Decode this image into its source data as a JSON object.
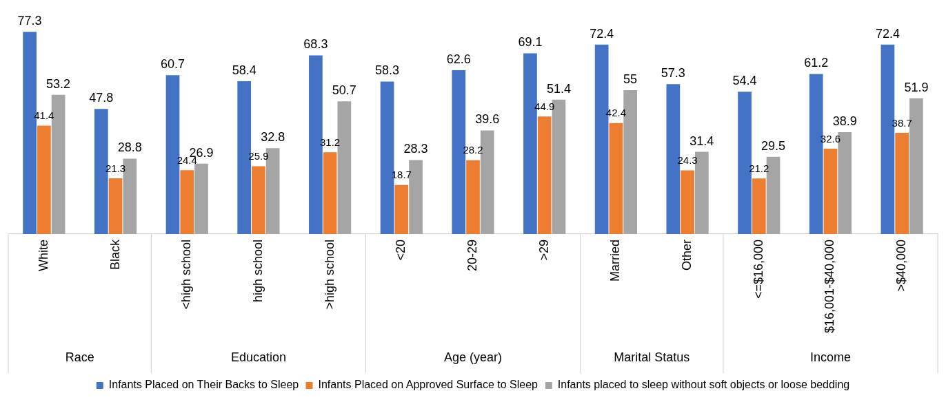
{
  "chart_data": {
    "type": "bar",
    "categories": [
      "White",
      "Black",
      "<high school",
      "high school",
      ">high school",
      "<20",
      "20-29",
      ">29",
      "Married",
      "Other",
      "<=$16,000",
      "$16,001-$40,000",
      ">$40,000"
    ],
    "series": [
      {
        "name": "Infants Placed on Their Backs to Sleep",
        "color": "#4472c4",
        "values": [
          77.3,
          47.8,
          60.7,
          58.4,
          68.3,
          58.3,
          62.6,
          69.1,
          72.4,
          57.3,
          54.4,
          61.2,
          72.4
        ]
      },
      {
        "name": "Infants Placed on Approved Surface to Sleep",
        "color": "#ed7d31",
        "values": [
          41.4,
          21.3,
          24.4,
          25.9,
          31.2,
          18.7,
          28.2,
          44.9,
          42.4,
          24.3,
          21.2,
          32.6,
          38.7
        ]
      },
      {
        "name": "Infants placed to sleep without soft objects or loose bedding",
        "color": "#a5a5a5",
        "values": [
          53.2,
          28.8,
          26.9,
          32.8,
          50.7,
          28.3,
          39.6,
          51.4,
          55,
          31.4,
          29.5,
          38.9,
          51.9
        ]
      }
    ],
    "annotations": [
      "Race",
      "Education",
      "Age (year)",
      "Marital Status",
      "Income"
    ],
    "data_labels": true,
    "grid": false,
    "legend": "bottom"
  }
}
